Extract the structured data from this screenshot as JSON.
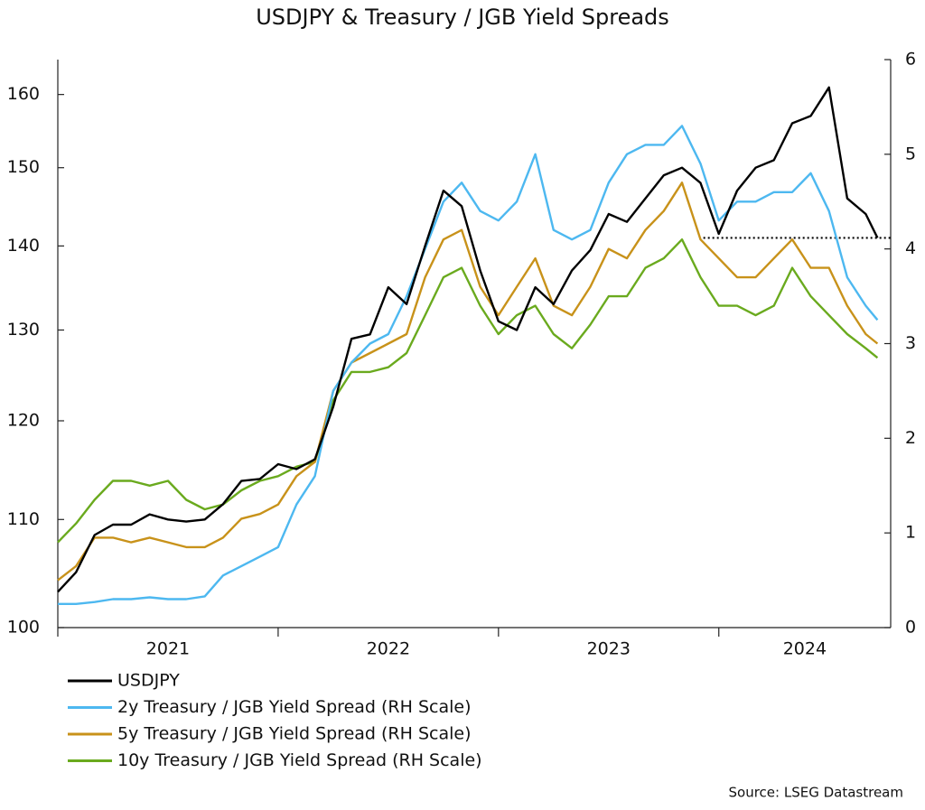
{
  "chart_data": {
    "type": "line",
    "title": "USDJPY & Treasury / JGB Yield Spreads",
    "source": "Source: LSEG Datastream",
    "x": [
      2021,
      2021.083,
      2021.167,
      2021.25,
      2021.333,
      2021.417,
      2021.5,
      2021.583,
      2021.667,
      2021.75,
      2021.833,
      2021.917,
      2022,
      2022.083,
      2022.167,
      2022.25,
      2022.333,
      2022.417,
      2022.5,
      2022.583,
      2022.667,
      2022.75,
      2022.833,
      2022.917,
      2023,
      2023.083,
      2023.167,
      2023.25,
      2023.333,
      2023.417,
      2023.5,
      2023.583,
      2023.667,
      2023.75,
      2023.833,
      2023.917,
      2024,
      2024.083,
      2024.167,
      2024.25,
      2024.333,
      2024.417,
      2024.5,
      2024.583,
      2024.667,
      2024.72
    ],
    "xlim": [
      2021,
      2024.78
    ],
    "xticks": [
      2021,
      2022,
      2023,
      2024
    ],
    "ylim": [
      100,
      165
    ],
    "log_y": true,
    "yticks": [
      100,
      110,
      120,
      130,
      140,
      150,
      160
    ],
    "y2lim": [
      0,
      6
    ],
    "y2ticks": [
      0,
      1,
      2,
      3,
      4,
      5,
      6
    ],
    "reference_line": {
      "value": 141,
      "x_start": 2023.93
    },
    "series": [
      {
        "name": "USDJPY",
        "color": "#000000",
        "values": [
          103.2,
          105,
          108.5,
          109.5,
          109.5,
          110.5,
          110,
          109.8,
          110,
          111.5,
          113.8,
          114,
          115.5,
          115,
          116,
          121.5,
          129,
          129.5,
          135,
          133,
          140,
          147,
          145,
          137,
          131,
          130,
          135,
          133,
          137,
          139.5,
          144,
          143,
          146,
          149,
          150,
          148,
          141.5,
          147,
          150,
          151,
          156,
          157,
          161,
          146,
          144,
          141
        ]
      },
      {
        "name": "2y Treasury / JGB Yield Spread (RH Scale)",
        "color": "#4db8f0",
        "axis": "y2",
        "values": [
          0.25,
          0.25,
          0.27,
          0.3,
          0.3,
          0.32,
          0.3,
          0.3,
          0.33,
          0.55,
          0.65,
          0.75,
          0.85,
          1.3,
          1.6,
          2.5,
          2.8,
          3.0,
          3.1,
          3.5,
          4.0,
          4.5,
          4.7,
          4.4,
          4.3,
          4.5,
          5.0,
          4.2,
          4.1,
          4.2,
          4.7,
          5.0,
          5.1,
          5.1,
          5.3,
          4.9,
          4.3,
          4.5,
          4.5,
          4.6,
          4.6,
          4.8,
          4.4,
          3.7,
          3.4,
          3.25
        ]
      },
      {
        "name": "5y Treasury / JGB Yield Spread (RH Scale)",
        "color": "#c8921a",
        "axis": "y2",
        "values": [
          0.5,
          0.65,
          0.95,
          0.95,
          0.9,
          0.95,
          0.9,
          0.85,
          0.85,
          0.95,
          1.15,
          1.2,
          1.3,
          1.6,
          1.75,
          2.5,
          2.8,
          2.9,
          3.0,
          3.1,
          3.7,
          4.1,
          4.2,
          3.6,
          3.3,
          3.6,
          3.9,
          3.4,
          3.3,
          3.6,
          4.0,
          3.9,
          4.2,
          4.4,
          4.7,
          4.1,
          3.9,
          3.7,
          3.7,
          3.9,
          4.1,
          3.8,
          3.8,
          3.4,
          3.1,
          3.0
        ]
      },
      {
        "name": "10y Treasury / JGB Yield Spread (RH Scale)",
        "color": "#6aaa1e",
        "axis": "y2",
        "values": [
          0.9,
          1.1,
          1.35,
          1.55,
          1.55,
          1.5,
          1.55,
          1.35,
          1.25,
          1.3,
          1.45,
          1.55,
          1.6,
          1.7,
          1.75,
          2.4,
          2.7,
          2.7,
          2.75,
          2.9,
          3.3,
          3.7,
          3.8,
          3.4,
          3.1,
          3.3,
          3.4,
          3.1,
          2.95,
          3.2,
          3.5,
          3.5,
          3.8,
          3.9,
          4.1,
          3.7,
          3.4,
          3.4,
          3.3,
          3.4,
          3.8,
          3.5,
          3.3,
          3.1,
          2.95,
          2.85
        ]
      }
    ]
  }
}
